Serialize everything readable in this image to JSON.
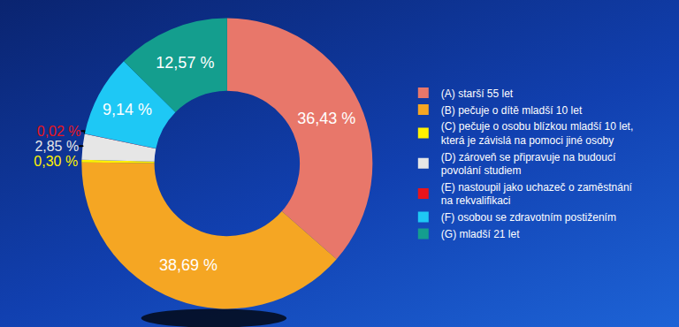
{
  "chart_data": {
    "type": "donut",
    "categories": [
      "(A) starší 55 let",
      "(B) pečuje o dítě mladší 10 let",
      "(C) pečuje o osobu blízkou mladší 10 let,\nkterá je závislá na pomoci jiné osoby",
      "(D) zároveň se připravuje na budoucí\npovolání studiem",
      "(E) nastoupil jako uchazeč o zaměstnání\nna rekvalifikaci",
      "(F) osobou se zdravotním postižením",
      "(G) mladší 21 let"
    ],
    "values": [
      36.43,
      38.69,
      0.3,
      2.85,
      0.02,
      9.14,
      12.57
    ],
    "value_labels": [
      "36,43 %",
      "38,69 %",
      "0,30 %",
      "2,85 %",
      "0,02 %",
      "9,14 %",
      "12,57 %"
    ],
    "colors": [
      "#e8776a",
      "#f5a623",
      "#fff200",
      "#e6e6e6",
      "#e8141b",
      "#1ec8f5",
      "#149e8e"
    ],
    "data_labels": true,
    "legend": "right"
  }
}
